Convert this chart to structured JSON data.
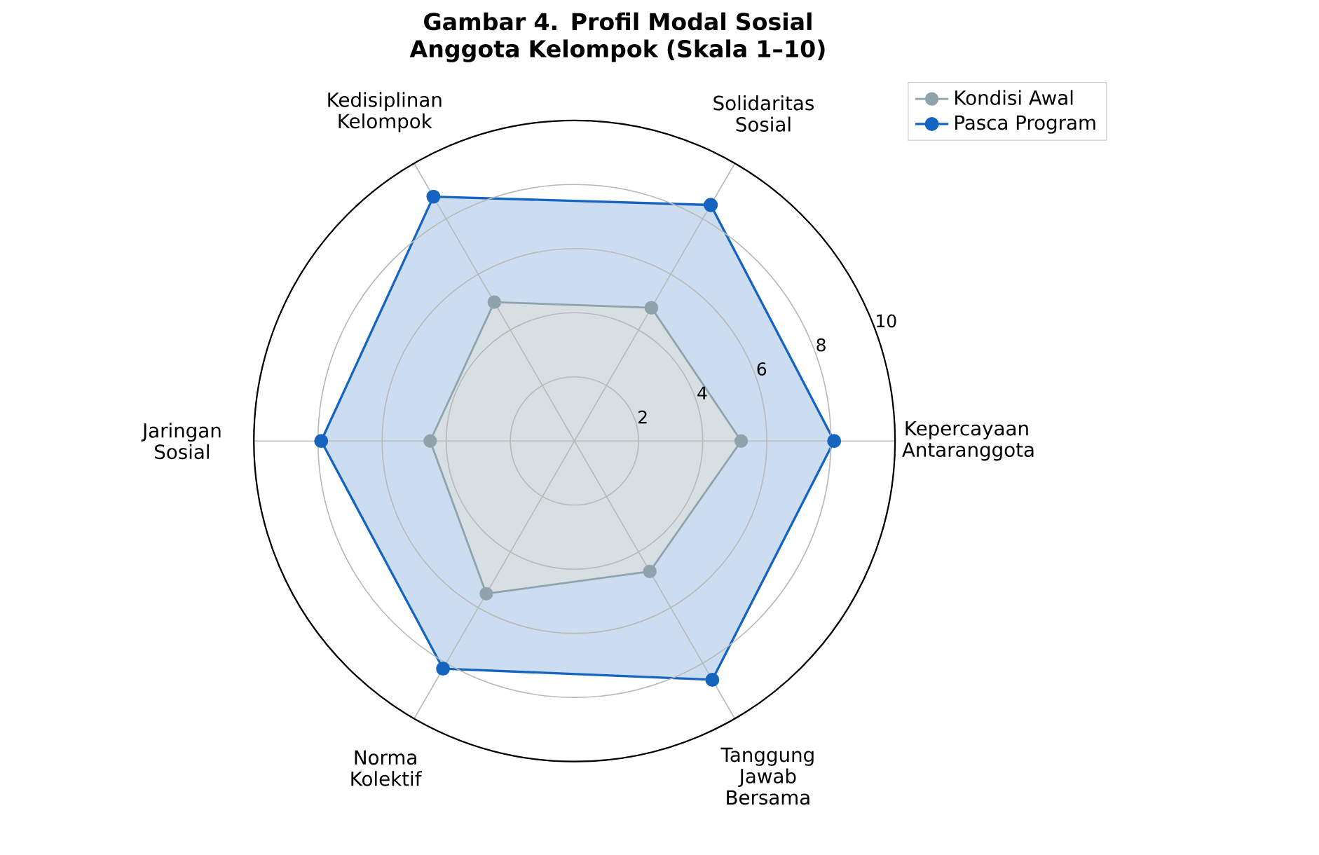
{
  "chart_data": {
    "type": "radar",
    "title": "Gambar 4. Profil Modal Sosial Anggota Kelompok (Skala 1–10)",
    "categories": [
      "Solidaritas Sosial",
      "Kepercayaan Antaranggota",
      "Tanggung Jawab Bersama",
      "Norma Kolektif",
      "Jaringan Sosial",
      "Kedisiplinan Kelompok"
    ],
    "series": [
      {
        "name": "Kondisi Awal",
        "color": "#8fa3ad",
        "values": [
          4.8,
          5.2,
          4.7,
          5.5,
          4.5,
          5.0
        ]
      },
      {
        "name": "Pasca Program",
        "color": "#1565c0",
        "values": [
          8.5,
          8.1,
          8.6,
          8.2,
          7.9,
          8.8
        ]
      }
    ],
    "ylim": [
      0,
      10
    ],
    "yticks": [
      2,
      4,
      6,
      8,
      10
    ],
    "grid": true,
    "legend": "top right",
    "marker": "circle",
    "line_style": "solid"
  }
}
